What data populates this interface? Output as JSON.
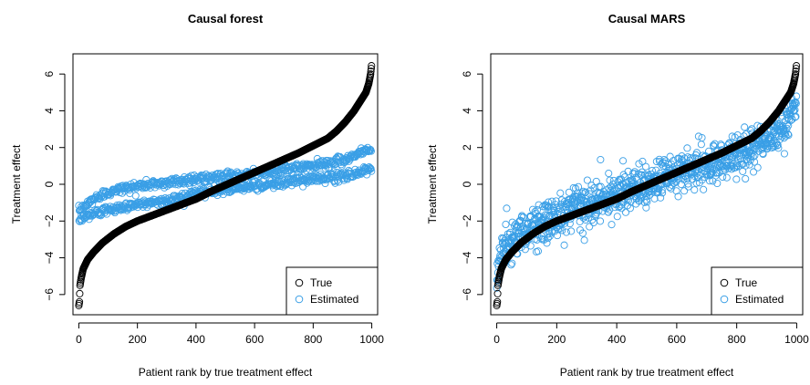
{
  "colors": {
    "true_series": "#000000",
    "estimated_series": "#3a9fe6",
    "axes": "#000000"
  },
  "chart_data": [
    {
      "type": "scatter",
      "title": "Causal forest",
      "xlabel": "Patient rank by true treatment effect",
      "ylabel": "Treatment effect",
      "xlim": [
        -20,
        1020
      ],
      "ylim": [
        -7.1,
        7.1
      ],
      "xticks": [
        0,
        200,
        400,
        600,
        800,
        1000
      ],
      "yticks": [
        -6,
        -4,
        -2,
        0,
        2,
        4,
        6
      ],
      "legend": {
        "position": "bottom-right",
        "entries": [
          "True",
          "Estimated"
        ]
      },
      "marker": "open-circle",
      "grid": false,
      "true_effect_curve": [
        [
          0,
          -6.6
        ],
        [
          2,
          -6.4
        ],
        [
          4,
          -5.5
        ],
        [
          8,
          -5.1
        ],
        [
          15,
          -4.6
        ],
        [
          30,
          -4.1
        ],
        [
          50,
          -3.7
        ],
        [
          80,
          -3.2
        ],
        [
          120,
          -2.7
        ],
        [
          160,
          -2.3
        ],
        [
          200,
          -2.0
        ],
        [
          250,
          -1.7
        ],
        [
          300,
          -1.4
        ],
        [
          350,
          -1.1
        ],
        [
          400,
          -0.8
        ],
        [
          450,
          -0.4
        ],
        [
          500,
          -0.05
        ],
        [
          550,
          0.3
        ],
        [
          600,
          0.65
        ],
        [
          650,
          1.0
        ],
        [
          700,
          1.35
        ],
        [
          750,
          1.7
        ],
        [
          800,
          2.1
        ],
        [
          850,
          2.5
        ],
        [
          880,
          2.9
        ],
        [
          910,
          3.4
        ],
        [
          940,
          4.0
        ],
        [
          960,
          4.5
        ],
        [
          980,
          5.0
        ],
        [
          990,
          5.5
        ],
        [
          996,
          6.0
        ],
        [
          1000,
          6.6
        ]
      ],
      "estimated": {
        "upper_band": [
          [
            0,
            -1.5
          ],
          [
            50,
            -0.8
          ],
          [
            100,
            -0.4
          ],
          [
            200,
            -0.1
          ],
          [
            300,
            0.1
          ],
          [
            400,
            0.3
          ],
          [
            500,
            0.4
          ],
          [
            600,
            0.6
          ],
          [
            700,
            0.8
          ],
          [
            800,
            1.0
          ],
          [
            900,
            1.3
          ],
          [
            1000,
            2.0
          ]
        ],
        "lower_band": [
          [
            0,
            -1.9
          ],
          [
            50,
            -1.6
          ],
          [
            100,
            -1.4
          ],
          [
            200,
            -1.1
          ],
          [
            300,
            -0.9
          ],
          [
            400,
            -0.5
          ],
          [
            500,
            -0.3
          ],
          [
            600,
            -0.1
          ],
          [
            700,
            0.1
          ],
          [
            800,
            0.3
          ],
          [
            900,
            0.4
          ],
          [
            1000,
            0.8
          ]
        ],
        "noise": 0.25
      }
    },
    {
      "type": "scatter",
      "title": "Causal MARS",
      "xlabel": "Patient rank by true treatment effect",
      "ylabel": "Treatment effect",
      "xlim": [
        -20,
        1020
      ],
      "ylim": [
        -7.1,
        7.1
      ],
      "xticks": [
        0,
        200,
        400,
        600,
        800,
        1000
      ],
      "yticks": [
        -6,
        -4,
        -2,
        0,
        2,
        4,
        6
      ],
      "legend": {
        "position": "bottom-right",
        "entries": [
          "True",
          "Estimated"
        ]
      },
      "marker": "open-circle",
      "grid": false,
      "true_effect_curve": [
        [
          0,
          -6.6
        ],
        [
          2,
          -6.4
        ],
        [
          4,
          -5.5
        ],
        [
          8,
          -5.1
        ],
        [
          15,
          -4.6
        ],
        [
          30,
          -4.1
        ],
        [
          50,
          -3.7
        ],
        [
          80,
          -3.2
        ],
        [
          120,
          -2.7
        ],
        [
          160,
          -2.3
        ],
        [
          200,
          -2.0
        ],
        [
          250,
          -1.7
        ],
        [
          300,
          -1.4
        ],
        [
          350,
          -1.1
        ],
        [
          400,
          -0.8
        ],
        [
          450,
          -0.4
        ],
        [
          500,
          -0.05
        ],
        [
          550,
          0.3
        ],
        [
          600,
          0.65
        ],
        [
          650,
          1.0
        ],
        [
          700,
          1.35
        ],
        [
          750,
          1.7
        ],
        [
          800,
          2.1
        ],
        [
          850,
          2.5
        ],
        [
          880,
          2.9
        ],
        [
          910,
          3.4
        ],
        [
          940,
          4.0
        ],
        [
          960,
          4.5
        ],
        [
          980,
          5.0
        ],
        [
          990,
          5.5
        ],
        [
          996,
          6.0
        ],
        [
          1000,
          6.6
        ]
      ],
      "estimated": {
        "center_curve": [
          [
            0,
            -4.8
          ],
          [
            20,
            -3.5
          ],
          [
            50,
            -3.0
          ],
          [
            100,
            -2.5
          ],
          [
            200,
            -1.8
          ],
          [
            300,
            -1.2
          ],
          [
            400,
            -0.6
          ],
          [
            500,
            0.0
          ],
          [
            600,
            0.5
          ],
          [
            700,
            1.0
          ],
          [
            800,
            1.6
          ],
          [
            900,
            2.4
          ],
          [
            950,
            3.0
          ],
          [
            1000,
            4.3
          ]
        ],
        "spread": 0.7
      }
    }
  ]
}
